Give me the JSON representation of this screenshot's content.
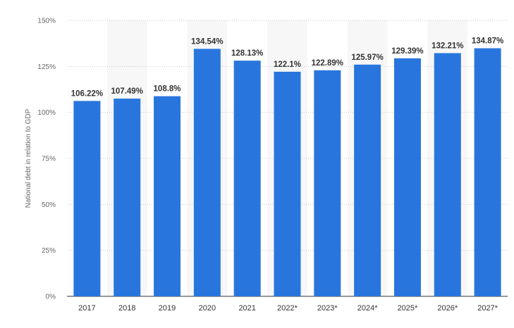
{
  "chart_data": {
    "type": "bar",
    "ylabel": "National debt in relation to GDP",
    "categories": [
      "2017",
      "2018",
      "2019",
      "2020",
      "2021",
      "2022*",
      "2023*",
      "2024*",
      "2025*",
      "2026*",
      "2027*"
    ],
    "values": [
      106.22,
      107.49,
      108.8,
      134.54,
      128.13,
      122.1,
      122.89,
      125.97,
      129.39,
      132.21,
      134.87
    ],
    "value_labels": [
      "106.22%",
      "107.49%",
      "108.8%",
      "134.54%",
      "128.13%",
      "122.1%",
      "122.89%",
      "125.97%",
      "129.39%",
      "132.21%",
      "134.87%"
    ],
    "ylim": [
      0,
      150
    ],
    "yticks": [
      0,
      25,
      50,
      75,
      100,
      125,
      150
    ],
    "ytick_labels": [
      "0%",
      "25%",
      "50%",
      "75%",
      "100%",
      "125%",
      "150%"
    ],
    "grid": true,
    "bar_color": "#2876dd",
    "alt_band_color": "#f7f7f7"
  }
}
